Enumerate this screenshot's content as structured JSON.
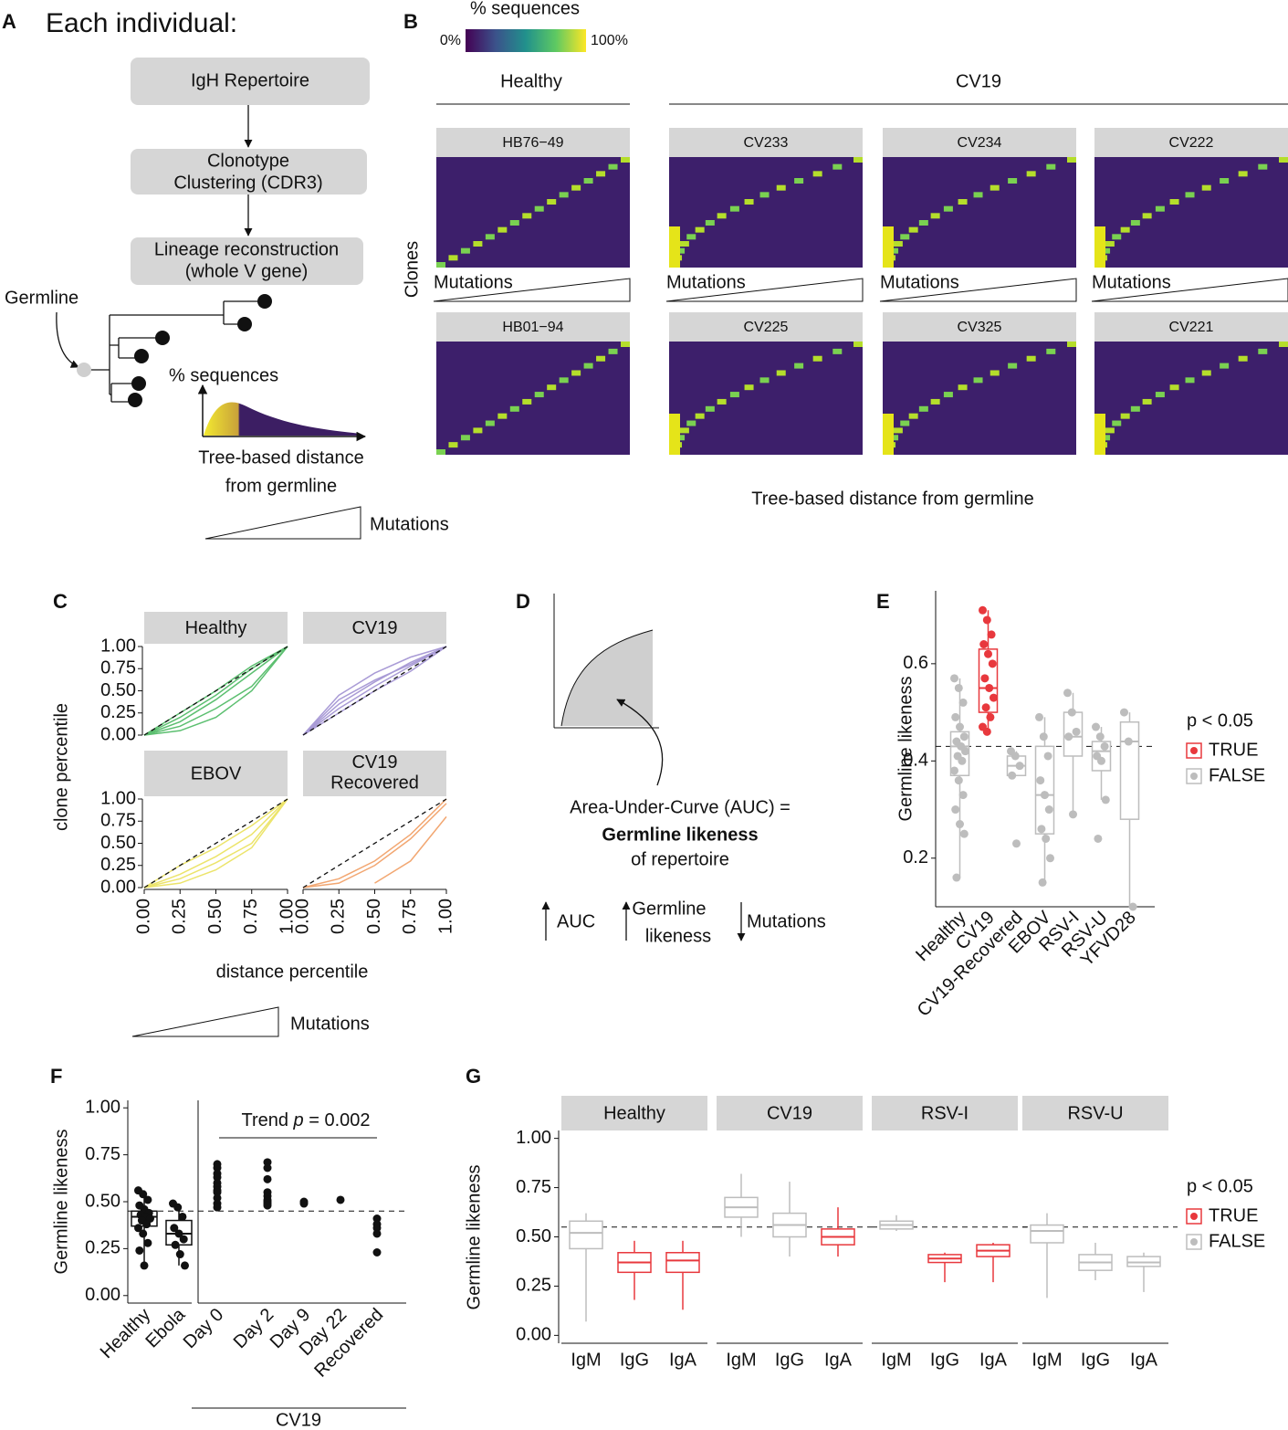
{
  "panel_labels": {
    "a": "A",
    "b": "B",
    "c": "C",
    "d": "D",
    "e": "E",
    "f": "F",
    "g": "G"
  },
  "panel_a": {
    "title": "Each individual:",
    "steps": [
      [
        "IgH Repertoire"
      ],
      [
        "Clonotype",
        "Clustering (CDR3)"
      ],
      [
        "Lineage reconstruction",
        "(whole V gene)"
      ]
    ],
    "germline": "Germline",
    "density_label": "% sequences",
    "distance_label": [
      "Tree-based distance",
      "from germline"
    ],
    "mutations": "Mutations"
  },
  "panel_b": {
    "colorbar_title": "% sequences",
    "colorbar_min": "0%",
    "colorbar_max": "100%",
    "groups": [
      "Healthy",
      "CV19"
    ],
    "ylabel": "Clones",
    "xlabel": "Tree-based distance from germline",
    "mutations": "Mutations",
    "heatmaps": [
      "HB76−49",
      "CV233",
      "CV234",
      "CV222",
      "HB01−94",
      "CV225",
      "CV325",
      "CV221"
    ]
  },
  "panel_d": {
    "auc_lines": [
      "Area-Under-Curve (AUC) =",
      "Germline likeness",
      "of repertoire"
    ],
    "auc": "AUC",
    "germline_likeness": [
      "Germline",
      "likeness"
    ],
    "mutations": "Mutations"
  },
  "chart_data": [
    {
      "type": "line",
      "xlabel": "distance percentile",
      "ylabel": "clone percentile",
      "mutations": "Mutations",
      "x": [
        0,
        0.25,
        0.5,
        0.75,
        1
      ],
      "xlim": [
        0,
        1
      ],
      "ylim": [
        0,
        1
      ],
      "xticks": [
        {
          "value": 0,
          "label": "0.00"
        },
        {
          "value": 0.25,
          "label": "0.25"
        },
        {
          "value": 0.5,
          "label": "0.50"
        },
        {
          "value": 0.75,
          "label": "0.75"
        },
        {
          "value": 1,
          "label": "1.00"
        }
      ],
      "yticks": [
        {
          "value": 0,
          "label": "0.00"
        },
        {
          "value": 0.25,
          "label": "0.25"
        },
        {
          "value": 0.5,
          "label": "0.50"
        },
        {
          "value": 0.75,
          "label": "0.75"
        },
        {
          "value": 1,
          "label": "1.00"
        }
      ],
      "facets": [
        {
          "name": [
            "Healthy"
          ],
          "color": "#5cbf70",
          "series": [
            {
              "values": [
                0,
                0.15,
                0.4,
                0.7,
                1
              ]
            },
            {
              "values": [
                0,
                0.2,
                0.45,
                0.75,
                1
              ]
            },
            {
              "values": [
                0,
                0.1,
                0.3,
                0.55,
                1
              ]
            },
            {
              "values": [
                0,
                0.05,
                0.2,
                0.5,
                1
              ]
            },
            {
              "values": [
                0,
                0.25,
                0.5,
                0.78,
                1
              ]
            }
          ]
        },
        {
          "name": [
            "CV19"
          ],
          "color": "#a99bd6",
          "series": [
            {
              "values": [
                0,
                0.35,
                0.6,
                0.82,
                1
              ]
            },
            {
              "values": [
                0,
                0.45,
                0.7,
                0.88,
                1
              ]
            },
            {
              "values": [
                0,
                0.3,
                0.55,
                0.78,
                1
              ]
            },
            {
              "values": [
                0,
                0.25,
                0.5,
                0.72,
                1
              ]
            },
            {
              "values": [
                0,
                0.4,
                0.62,
                0.8,
                1
              ]
            }
          ]
        },
        {
          "name": [
            "EBOV"
          ],
          "color": "#ece46b",
          "series": [
            {
              "values": [
                0,
                0.15,
                0.35,
                0.6,
                1
              ]
            },
            {
              "values": [
                0,
                0.05,
                0.2,
                0.45,
                1
              ]
            },
            {
              "values": [
                0,
                0.25,
                0.45,
                0.7,
                1
              ]
            },
            {
              "values": [
                0,
                0.1,
                0.28,
                0.5,
                1
              ]
            }
          ]
        },
        {
          "name": [
            "CV19",
            "Recovered"
          ],
          "color": "#f2a772",
          "series": [
            {
              "values": [
                0,
                0.1,
                0.3,
                0.6,
                1
              ]
            },
            {
              "values": [
                0,
                0.05,
                0.25,
                0.55,
                0.95
              ]
            },
            {
              "values": [
                null,
                null,
                0.05,
                0.3,
                0.8
              ]
            }
          ]
        }
      ]
    },
    {
      "type": "box",
      "ylabel": "Germline likeness",
      "categories": [
        "Healthy",
        "CV19",
        "CV19-Recovered",
        "EBOV",
        "RSV-I",
        "RSV-U",
        "YFVD28"
      ],
      "ylim": [
        0.1,
        0.75
      ],
      "yticks": [
        0.2,
        0.4,
        0.6
      ],
      "hline": 0.43,
      "legend": {
        "title": "p < 0.05",
        "entries": [
          {
            "label": "TRUE",
            "color": "#e8383d"
          },
          {
            "label": "FALSE",
            "color": "#bdbdbd"
          }
        ]
      },
      "boxes": [
        {
          "min": 0.16,
          "q1": 0.37,
          "median": 0.43,
          "q3": 0.46,
          "max": 0.57,
          "color": "#bdbdbd",
          "points": [
            0.57,
            0.55,
            0.52,
            0.49,
            0.47,
            0.45,
            0.44,
            0.43,
            0.42,
            0.41,
            0.4,
            0.38,
            0.36,
            0.33,
            0.3,
            0.27,
            0.25,
            0.16
          ]
        },
        {
          "min": 0.46,
          "q1": 0.5,
          "median": 0.55,
          "q3": 0.63,
          "max": 0.71,
          "color": "#e8383d",
          "points": [
            0.71,
            0.69,
            0.66,
            0.64,
            0.62,
            0.6,
            0.57,
            0.55,
            0.53,
            0.51,
            0.49,
            0.47,
            0.46
          ]
        },
        {
          "min": 0.37,
          "q1": 0.37,
          "median": 0.39,
          "q3": 0.41,
          "max": 0.42,
          "color": "#bdbdbd",
          "points": [
            0.42,
            0.41,
            0.39,
            0.37,
            0.23
          ]
        },
        {
          "min": 0.15,
          "q1": 0.25,
          "median": 0.33,
          "q3": 0.43,
          "max": 0.49,
          "color": "#bdbdbd",
          "points": [
            0.49,
            0.45,
            0.41,
            0.36,
            0.33,
            0.3,
            0.26,
            0.24,
            0.2,
            0.15
          ]
        },
        {
          "min": 0.29,
          "q1": 0.41,
          "median": 0.45,
          "q3": 0.5,
          "max": 0.54,
          "color": "#bdbdbd",
          "points": [
            0.54,
            0.5,
            0.46,
            0.45,
            0.29
          ]
        },
        {
          "min": 0.32,
          "q1": 0.38,
          "median": 0.42,
          "q3": 0.44,
          "max": 0.47,
          "color": "#bdbdbd",
          "points": [
            0.47,
            0.45,
            0.43,
            0.41,
            0.4,
            0.32,
            0.24
          ]
        },
        {
          "min": 0.1,
          "q1": 0.28,
          "median": 0.44,
          "q3": 0.48,
          "max": 0.5,
          "color": "#bdbdbd",
          "points": [
            0.5,
            0.44,
            0.1
          ]
        }
      ]
    },
    {
      "type": "box",
      "ylabel": "Germline likeness",
      "categories": [
        "Healthy",
        "Ebola",
        "Day 0",
        "Day 2",
        "Day 9",
        "Day 22",
        "Recovered"
      ],
      "group_label": "CV19",
      "annotation": [
        "Trend ",
        "p",
        " = 0.002"
      ],
      "ylim": [
        -0.04,
        1.04
      ],
      "yticks": [
        {
          "value": 0,
          "label": "0.00"
        },
        {
          "value": 0.25,
          "label": "0.25"
        },
        {
          "value": 0.5,
          "label": "0.50"
        },
        {
          "value": 0.75,
          "label": "0.75"
        },
        {
          "value": 1,
          "label": "1.00"
        }
      ],
      "hline": 0.45,
      "boxes": [
        {
          "min": 0.16,
          "q1": 0.37,
          "median": 0.42,
          "q3": 0.45,
          "max": 0.56
        },
        {
          "min": 0.16,
          "q1": 0.27,
          "median": 0.33,
          "q3": 0.4,
          "max": 0.49
        },
        null,
        null,
        null,
        null,
        null
      ],
      "points": [
        [
          0.56,
          0.54,
          0.51,
          0.48,
          0.46,
          0.44,
          0.43,
          0.42,
          0.41,
          0.4,
          0.38,
          0.36,
          0.33,
          0.28,
          0.24,
          0.16
        ],
        [
          0.49,
          0.47,
          0.42,
          0.36,
          0.33,
          0.3,
          0.27,
          0.22,
          0.16
        ],
        [
          0.7,
          0.68,
          0.65,
          0.63,
          0.6,
          0.58,
          0.56,
          0.55,
          0.52,
          0.49,
          0.47
        ],
        [
          0.71,
          0.68,
          0.62,
          0.55,
          0.53,
          0.51,
          0.5,
          0.49,
          0.48
        ],
        [
          0.5,
          0.49
        ],
        [
          0.51
        ],
        [
          0.41,
          0.38,
          0.36,
          0.33,
          0.23
        ]
      ]
    },
    {
      "type": "box",
      "ylabel": "Germline likeness",
      "categories": [
        "IgM",
        "IgG",
        "IgA"
      ],
      "ylim": [
        -0.04,
        1.04
      ],
      "yticks": [
        {
          "value": 0,
          "label": "0.00"
        },
        {
          "value": 0.25,
          "label": "0.25"
        },
        {
          "value": 0.5,
          "label": "0.50"
        },
        {
          "value": 0.75,
          "label": "0.75"
        },
        {
          "value": 1,
          "label": "1.00"
        }
      ],
      "hline": 0.55,
      "legend": {
        "title": "p < 0.05",
        "entries": [
          {
            "label": "TRUE",
            "color": "#e8383d"
          },
          {
            "label": "FALSE",
            "color": "#bdbdbd"
          }
        ]
      },
      "facets": [
        {
          "name": "Healthy",
          "boxes": [
            {
              "min": 0.07,
              "q1": 0.44,
              "median": 0.52,
              "q3": 0.58,
              "max": 0.62,
              "color": "#bdbdbd"
            },
            {
              "min": 0.18,
              "q1": 0.32,
              "median": 0.37,
              "q3": 0.42,
              "max": 0.48,
              "color": "#e8383d"
            },
            {
              "min": 0.13,
              "q1": 0.32,
              "median": 0.38,
              "q3": 0.42,
              "max": 0.48,
              "color": "#e8383d"
            }
          ]
        },
        {
          "name": "CV19",
          "boxes": [
            {
              "min": 0.5,
              "q1": 0.6,
              "median": 0.65,
              "q3": 0.7,
              "max": 0.82,
              "color": "#bdbdbd"
            },
            {
              "min": 0.4,
              "q1": 0.5,
              "median": 0.56,
              "q3": 0.62,
              "max": 0.78,
              "color": "#bdbdbd"
            },
            {
              "min": 0.4,
              "q1": 0.46,
              "median": 0.5,
              "q3": 0.54,
              "max": 0.65,
              "color": "#e8383d"
            }
          ]
        },
        {
          "name": "RSV-I",
          "boxes": [
            {
              "min": 0.53,
              "q1": 0.54,
              "median": 0.56,
              "q3": 0.58,
              "max": 0.61,
              "color": "#bdbdbd"
            },
            {
              "min": 0.27,
              "q1": 0.37,
              "median": 0.39,
              "q3": 0.41,
              "max": 0.42,
              "color": "#e8383d"
            },
            {
              "min": 0.27,
              "q1": 0.4,
              "median": 0.43,
              "q3": 0.46,
              "max": 0.47,
              "color": "#e8383d"
            }
          ]
        },
        {
          "name": "RSV-U",
          "boxes": [
            {
              "min": 0.19,
              "q1": 0.47,
              "median": 0.53,
              "q3": 0.56,
              "max": 0.62,
              "color": "#bdbdbd"
            },
            {
              "min": 0.28,
              "q1": 0.33,
              "median": 0.37,
              "q3": 0.41,
              "max": 0.47,
              "color": "#bdbdbd"
            },
            {
              "min": 0.22,
              "q1": 0.35,
              "median": 0.37,
              "q3": 0.4,
              "max": 0.42,
              "color": "#bdbdbd"
            }
          ]
        }
      ]
    }
  ]
}
